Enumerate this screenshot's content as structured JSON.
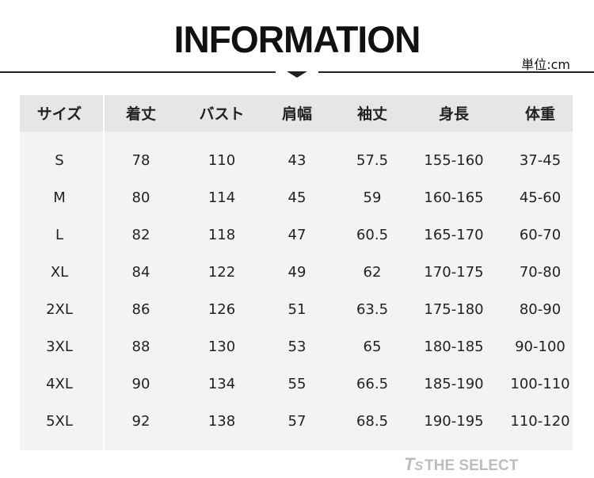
{
  "title": "INFORMATION",
  "unit_label": "単位:cm",
  "watermark": "THE SELECT",
  "watermark_logo": "TS",
  "table": {
    "headers": [
      "サイズ",
      "着丈",
      "バスト",
      "肩幅",
      "袖丈",
      "身長",
      "体重"
    ],
    "rows": [
      [
        "S",
        "78",
        "110",
        "43",
        "57.5",
        "155-160",
        "37-45"
      ],
      [
        "M",
        "80",
        "114",
        "45",
        "59",
        "160-165",
        "45-60"
      ],
      [
        "L",
        "82",
        "118",
        "47",
        "60.5",
        "165-170",
        "60-70"
      ],
      [
        "XL",
        "84",
        "122",
        "49",
        "62",
        "170-175",
        "70-80"
      ],
      [
        "2XL",
        "86",
        "126",
        "51",
        "63.5",
        "175-180",
        "80-90"
      ],
      [
        "3XL",
        "88",
        "130",
        "53",
        "65",
        "180-185",
        "90-100"
      ],
      [
        "4XL",
        "90",
        "134",
        "55",
        "66.5",
        "185-190",
        "100-110"
      ],
      [
        "5XL",
        "92",
        "138",
        "57",
        "68.5",
        "190-195",
        "110-120"
      ]
    ]
  }
}
